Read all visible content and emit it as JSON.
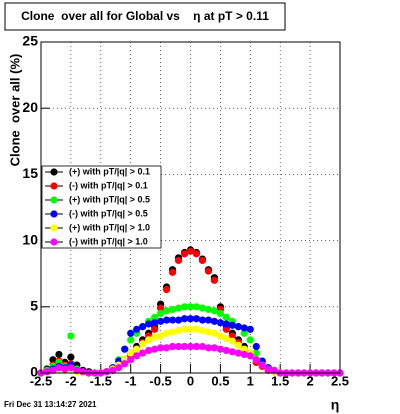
{
  "chart_data": {
    "type": "scatter",
    "title": "Clone  over all for Global vs    η at pT > 0.11",
    "x_label": "η",
    "y_label": "Clone  over all (%)",
    "footer": "Fri Dec 31 13:14:27 2021",
    "xlim": [
      -2.5,
      2.5
    ],
    "ylim": [
      0,
      25
    ],
    "xticks": [
      -2.5,
      -2,
      -1.5,
      -1,
      -0.5,
      0,
      0.5,
      1,
      1.5,
      2,
      2.5
    ],
    "yticks": [
      0,
      5,
      10,
      15,
      20,
      25
    ],
    "grid": true,
    "legend_position": "upper-left",
    "x": [
      -2.5,
      -2.4,
      -2.3,
      -2.2,
      -2.1,
      -2.0,
      -1.9,
      -1.8,
      -1.7,
      -1.6,
      -1.5,
      -1.4,
      -1.3,
      -1.2,
      -1.1,
      -1.0,
      -0.9,
      -0.8,
      -0.7,
      -0.6,
      -0.5,
      -0.4,
      -0.3,
      -0.2,
      -0.1,
      0,
      0.1,
      0.2,
      0.3,
      0.4,
      0.5,
      0.6,
      0.7,
      0.8,
      0.9,
      1.0,
      1.1,
      1.2,
      1.3,
      1.4,
      1.5,
      1.6,
      1.7,
      1.8,
      1.9,
      2.0,
      2.1,
      2.2,
      2.3,
      2.4,
      2.5
    ],
    "series": [
      {
        "name": "(+) with pT/|q| > 0.1",
        "color": "#000000",
        "values": [
          0,
          0.3,
          1.0,
          1.4,
          0.8,
          1.2,
          0.6,
          0.2,
          0.1,
          0,
          0,
          0.1,
          0.3,
          0.6,
          1.0,
          1.5,
          2.0,
          2.5,
          3.0,
          3.5,
          5.2,
          6.5,
          7.8,
          8.7,
          9.1,
          9.3,
          9.1,
          8.6,
          7.8,
          7.2,
          5.0,
          3.5,
          3.0,
          2.5,
          2.0,
          1.5,
          1.0,
          0.6,
          0.3,
          0.1,
          0,
          0,
          0,
          0,
          0,
          0,
          0,
          0,
          0,
          0,
          0
        ]
      },
      {
        "name": "(-) with pT/|q| > 0.1",
        "color": "#ff0000",
        "values": [
          0,
          0.2,
          0.6,
          0.9,
          0.6,
          0.7,
          0.3,
          0.1,
          0,
          0,
          0,
          0.1,
          0.2,
          0.5,
          0.8,
          1.3,
          1.8,
          2.3,
          2.8,
          3.3,
          4.9,
          6.3,
          7.6,
          8.5,
          9.0,
          9.2,
          9.0,
          8.5,
          7.7,
          7.0,
          4.8,
          3.3,
          2.8,
          2.3,
          1.8,
          1.3,
          0.8,
          0.5,
          0.2,
          0.1,
          0,
          0,
          0,
          0,
          0,
          0,
          0,
          0,
          0,
          0,
          0
        ]
      },
      {
        "name": "(+) with pT/|q| > 0.5",
        "color": "#00ff00",
        "values": [
          0,
          0.2,
          0.5,
          0.8,
          0.5,
          2.8,
          0.3,
          0.1,
          0,
          0,
          0,
          0.1,
          0.4,
          1.0,
          1.8,
          2.5,
          3.0,
          3.5,
          3.9,
          4.2,
          4.5,
          4.7,
          4.8,
          4.9,
          5.0,
          5.0,
          5.0,
          4.9,
          4.8,
          4.7,
          4.5,
          4.2,
          3.9,
          3.5,
          3.0,
          2.5,
          1.5,
          0.9,
          0.4,
          0.1,
          0,
          0,
          0,
          0,
          0,
          0,
          0,
          0,
          0,
          0,
          0
        ]
      },
      {
        "name": "(-) with pT/|q| > 0.5",
        "color": "#0000ff",
        "values": [
          0,
          0.1,
          0.3,
          0.5,
          0.4,
          0.6,
          0.2,
          0.1,
          0,
          0,
          0,
          0.1,
          0.4,
          0.9,
          1.8,
          3.0,
          3.3,
          3.5,
          3.7,
          3.8,
          3.9,
          4.0,
          4.0,
          4.0,
          4.1,
          4.1,
          4.1,
          4.0,
          4.0,
          3.9,
          3.8,
          3.7,
          3.6,
          3.5,
          3.4,
          3.3,
          2.0,
          0.9,
          0.4,
          0.1,
          0,
          0,
          0,
          0,
          0,
          0,
          0,
          0,
          0,
          0,
          0
        ]
      },
      {
        "name": "(+) with pT/|q| > 1.0",
        "color": "#ffff00",
        "values": [
          0,
          0.1,
          0.2,
          0.3,
          0.2,
          0.3,
          0.1,
          0,
          0,
          0,
          0,
          0.1,
          0.3,
          0.6,
          1.0,
          1.5,
          1.8,
          2.2,
          2.5,
          2.7,
          2.8,
          3.0,
          3.1,
          3.2,
          3.3,
          3.3,
          3.3,
          3.2,
          3.1,
          3.0,
          2.8,
          2.6,
          2.4,
          2.1,
          1.8,
          1.5,
          1.0,
          0.6,
          0.3,
          0.1,
          0,
          0,
          0,
          0,
          0,
          0,
          0,
          0,
          0,
          0,
          0
        ]
      },
      {
        "name": "(-) with pT/|q| > 1.0",
        "color": "#ff00ff",
        "values": [
          0,
          0.1,
          0.2,
          0.4,
          0.3,
          0.4,
          0.2,
          0.1,
          0,
          0,
          0,
          0.1,
          0.2,
          0.4,
          0.7,
          1.0,
          1.3,
          1.5,
          1.7,
          1.8,
          1.9,
          1.9,
          2.0,
          2.0,
          2.0,
          2.0,
          2.0,
          2.0,
          1.9,
          1.9,
          1.8,
          1.7,
          1.6,
          1.5,
          1.4,
          1.3,
          1.0,
          0.6,
          0.3,
          0.2,
          0,
          0,
          0,
          0,
          0,
          0,
          0,
          0,
          0,
          0,
          0
        ]
      }
    ]
  }
}
